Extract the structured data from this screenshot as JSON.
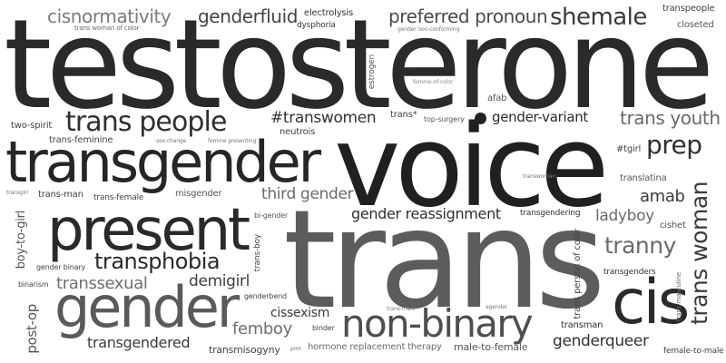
{
  "words": {
    "testosterone": "testosterone",
    "voice": "voice",
    "trans": "trans",
    "transgender": "transgender",
    "present": "present",
    "gender": "gender",
    "cis": "cis",
    "non_binary": "non-binary",
    "trans_people": "trans people",
    "transphobia": "transphobia",
    "cisnormativity": "cisnormativity",
    "genderfluid": "genderfluid",
    "preferred_pronoun": "preferred pronoun",
    "shemale": "shemale",
    "transpeople": "transpeople",
    "closeted": "closeted",
    "electrolysis": "electrolysis",
    "dysphoria": "dysphoria",
    "trans_woman_of_color": "trans woman of color",
    "gender_non_conforming": "gender non-conforming",
    "estrogen": "estrogen",
    "femme_of_color": "femme-of-color",
    "afab": "afab",
    "two_spirit": "two-spirit",
    "hashtag_transwomen": "#transwomen",
    "trans_star": "trans*",
    "top_surgery": "top-surgery",
    "gender_variant": "gender-variant",
    "trans_youth": "trans youth",
    "neutrois": "neutrois",
    "trans_feminine": "trans-feminine",
    "sex_change": "sex-change",
    "femme_presenting": "femme presenting",
    "prep": "prep",
    "hashtag_tgirl": "#tgirl",
    "transwoman": "transwoman",
    "translatina": "translatina",
    "transgirl": "transgirl",
    "trans_man": "trans-man",
    "trans_female": "trans-female",
    "misgender": "misgender",
    "third_gender": "third gender",
    "amab": "amab",
    "trans_woman": "trans woman",
    "boy_to_girl": "boy-to-girl",
    "bi_gender": "bi-gender",
    "gender_reassignment": "gender reassignment",
    "transgendering": "transgendering",
    "ladyboy": "ladyboy",
    "cishet": "cishet",
    "tranny": "tranny",
    "gender_binary": "gender binary",
    "trans_boy": "trans-boy",
    "trans_person_of_color": "trans person of color",
    "transgenders": "transgenders",
    "binarism": "binarism",
    "transsexual": "transsexual",
    "demigirl": "demigirl",
    "trans_masculine": "trans-masculine",
    "genderbend": "genderbend",
    "post_op": "post-op",
    "trans_male": "trans-male",
    "agender": "agender",
    "cissexism": "cissexism",
    "binder": "binder",
    "femboy": "femboy",
    "transman": "transman",
    "genderqueer": "genderqueer",
    "transgendered": "transgendered",
    "transmisogyny": "transmisogyny",
    "pmt": "pmt",
    "hormone_replacement_therapy": "hormone replacement therapy",
    "male_to_female": "male-to-female",
    "female_to_male": "female-to-male"
  },
  "colors": {
    "darkest": "#202020",
    "dark": "#2f2f2f",
    "mid": "#4a4a4a",
    "medium": "#5a5a5a",
    "light": "#6e6e6e",
    "lighter": "#8a8a8a"
  }
}
